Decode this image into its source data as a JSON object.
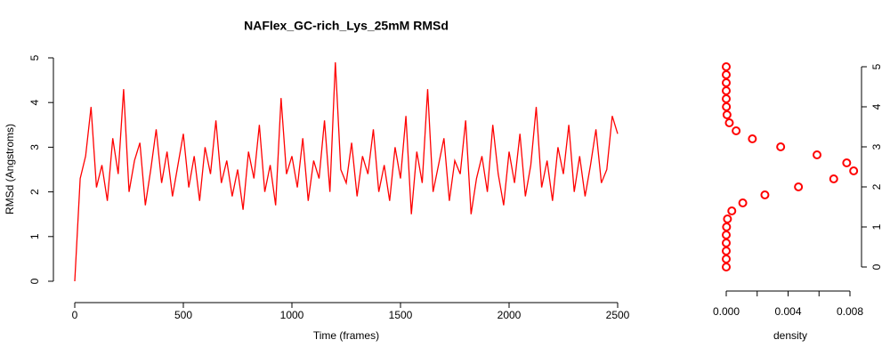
{
  "chart_data": [
    {
      "type": "line",
      "title": "NAFlex_GC-rich_Lys_25mM RMSd",
      "x_label": "Time (frames)",
      "y_label": "RMSd (Angstroms)",
      "x": [
        0,
        25,
        50,
        75,
        100,
        125,
        150,
        175,
        200,
        225,
        250,
        275,
        300,
        325,
        350,
        375,
        400,
        425,
        450,
        475,
        500,
        525,
        550,
        575,
        600,
        625,
        650,
        675,
        700,
        725,
        750,
        775,
        800,
        825,
        850,
        875,
        900,
        925,
        950,
        975,
        1000,
        1025,
        1050,
        1075,
        1100,
        1125,
        1150,
        1175,
        1200,
        1225,
        1250,
        1275,
        1300,
        1325,
        1350,
        1375,
        1400,
        1425,
        1450,
        1475,
        1500,
        1525,
        1550,
        1575,
        1600,
        1625,
        1650,
        1675,
        1700,
        1725,
        1750,
        1775,
        1800,
        1825,
        1850,
        1875,
        1900,
        1925,
        1950,
        1975,
        2000,
        2025,
        2050,
        2075,
        2100,
        2125,
        2150,
        2175,
        2200,
        2225,
        2250,
        2275,
        2300,
        2325,
        2350,
        2375,
        2400,
        2425,
        2450,
        2475,
        2500
      ],
      "series": [
        {
          "color": "#ff0000",
          "values": [
            0,
            2.3,
            2.8,
            3.9,
            2.1,
            2.6,
            1.8,
            3.2,
            2.4,
            4.3,
            2.0,
            2.7,
            3.1,
            1.7,
            2.5,
            3.4,
            2.2,
            2.9,
            1.9,
            2.6,
            3.3,
            2.1,
            2.8,
            1.8,
            3.0,
            2.4,
            3.6,
            2.2,
            2.7,
            1.9,
            2.5,
            1.6,
            2.9,
            2.3,
            3.5,
            2.0,
            2.6,
            1.7,
            4.1,
            2.4,
            2.8,
            2.1,
            3.2,
            1.8,
            2.7,
            2.3,
            3.6,
            2.0,
            4.9,
            2.5,
            2.2,
            3.1,
            1.9,
            2.8,
            2.4,
            3.4,
            2.0,
            2.6,
            1.8,
            3.0,
            2.3,
            3.7,
            1.5,
            2.9,
            2.2,
            4.3,
            2.0,
            2.6,
            3.2,
            1.8,
            2.7,
            2.4,
            3.6,
            1.5,
            2.3,
            2.8,
            2.0,
            3.5,
            2.4,
            1.7,
            2.9,
            2.2,
            3.3,
            1.9,
            2.6,
            3.9,
            2.1,
            2.7,
            1.8,
            3.0,
            2.4,
            3.5,
            2.0,
            2.8,
            1.9,
            2.6,
            3.4,
            2.2,
            2.5,
            3.7,
            3.3
          ]
        }
      ],
      "xlim": [
        0,
        2500
      ],
      "xticks": [
        0,
        500,
        1000,
        1500,
        2000,
        2500
      ],
      "ylim": [
        0,
        5
      ],
      "yticks": [
        0,
        1,
        2,
        3,
        4,
        5
      ]
    },
    {
      "type": "density",
      "x_label": "density",
      "y": [
        0,
        0.2,
        0.4,
        0.6,
        0.8,
        1.0,
        1.2,
        1.4,
        1.6,
        1.8,
        2.0,
        2.2,
        2.4,
        2.6,
        2.8,
        3.0,
        3.2,
        3.4,
        3.6,
        3.8,
        4.0,
        4.2,
        4.4,
        4.6,
        4.8,
        5.0
      ],
      "series": [
        {
          "color": "#ff0000",
          "values": [
            0,
            0,
            0,
            0,
            0,
            2e-05,
            8e-05,
            0.00036,
            0.00107,
            0.0025,
            0.00467,
            0.00695,
            0.00824,
            0.00779,
            0.00587,
            0.00352,
            0.00169,
            0.00064,
            0.0002,
            5e-05,
            1e-05,
            0,
            0,
            0,
            0,
            0
          ]
        }
      ],
      "xlim": [
        0,
        0.008
      ],
      "xticks": [
        {
          "value": 0,
          "label": "0.000"
        },
        {
          "value": 0.002,
          "label": null
        },
        {
          "value": 0.004,
          "label": "0.004"
        },
        {
          "value": 0.006,
          "label": null
        },
        {
          "value": 0.008,
          "label": "0.008"
        }
      ],
      "ylim": [
        0,
        5
      ],
      "yticks": [
        0,
        1,
        2,
        3,
        4,
        5
      ]
    }
  ]
}
